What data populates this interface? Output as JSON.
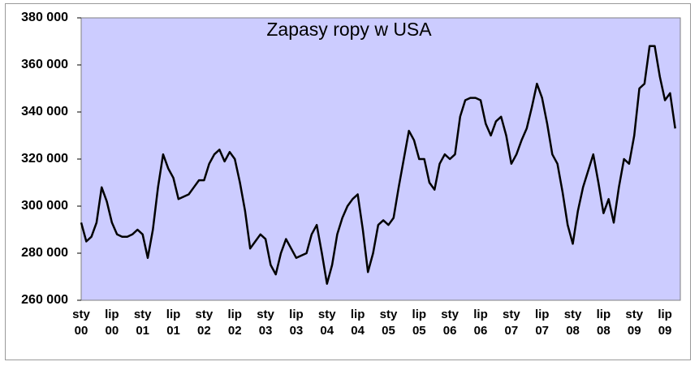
{
  "chart_data": {
    "type": "line",
    "title": "Zapasy ropy w USA",
    "categories": [
      "sty 00",
      null,
      null,
      null,
      null,
      null,
      "lip 00",
      null,
      null,
      null,
      null,
      null,
      "sty 01",
      null,
      null,
      null,
      null,
      null,
      "lip 01",
      null,
      null,
      null,
      null,
      null,
      "sty 02",
      null,
      null,
      null,
      null,
      null,
      "lip 02",
      null,
      null,
      null,
      null,
      null,
      "sty 03",
      null,
      null,
      null,
      null,
      null,
      "lip 03",
      null,
      null,
      null,
      null,
      null,
      "sty 04",
      null,
      null,
      null,
      null,
      null,
      "lip 04",
      null,
      null,
      null,
      null,
      null,
      "sty 05",
      null,
      null,
      null,
      null,
      null,
      "lip 05",
      null,
      null,
      null,
      null,
      null,
      "sty 06",
      null,
      null,
      null,
      null,
      null,
      "lip 06",
      null,
      null,
      null,
      null,
      null,
      "sty 07",
      null,
      null,
      null,
      null,
      null,
      "lip 07",
      null,
      null,
      null,
      null,
      null,
      "sty 08",
      null,
      null,
      null,
      null,
      null,
      "lip 08",
      null,
      null,
      null,
      null,
      null,
      "sty 09",
      null,
      null,
      null,
      null,
      null,
      "lip 09",
      null,
      null
    ],
    "series": [
      {
        "name": "Zapasy ropy",
        "color": "#000000",
        "values": [
          293000,
          285000,
          287000,
          293000,
          308000,
          302000,
          293000,
          288000,
          287000,
          287000,
          288000,
          290000,
          288000,
          278000,
          290000,
          308000,
          322000,
          316000,
          312000,
          303000,
          304000,
          305000,
          308000,
          311000,
          311000,
          318000,
          322000,
          324000,
          319000,
          323000,
          320000,
          310000,
          298000,
          282000,
          285000,
          288000,
          286000,
          275000,
          271000,
          280000,
          286000,
          282000,
          278000,
          279000,
          280000,
          288000,
          292000,
          280000,
          267000,
          275000,
          288000,
          295000,
          300000,
          303000,
          305000,
          290000,
          272000,
          280000,
          292000,
          294000,
          292000,
          295000,
          308000,
          320000,
          332000,
          328000,
          320000,
          320000,
          310000,
          307000,
          318000,
          322000,
          320000,
          322000,
          338000,
          345000,
          346000,
          346000,
          345000,
          335000,
          330000,
          336000,
          338000,
          330000,
          318000,
          322000,
          328000,
          333000,
          342000,
          352000,
          346000,
          335000,
          322000,
          318000,
          306000,
          292000,
          284000,
          298000,
          308000,
          315000,
          322000,
          310000,
          297000,
          303000,
          293000,
          308000,
          320000,
          318000,
          330000,
          350000,
          352000,
          368000,
          368000,
          355000,
          345000,
          348000,
          333000
        ]
      }
    ],
    "ylim": [
      260000,
      380000
    ],
    "yticks": [
      {
        "value": 260000,
        "label": "260 000"
      },
      {
        "value": 280000,
        "label": "280 000"
      },
      {
        "value": 300000,
        "label": "300 000"
      },
      {
        "value": 320000,
        "label": "320 000"
      },
      {
        "value": 340000,
        "label": "340 000"
      },
      {
        "value": 360000,
        "label": "360 000"
      },
      {
        "value": 380000,
        "label": "380 000"
      }
    ],
    "grid": false
  }
}
